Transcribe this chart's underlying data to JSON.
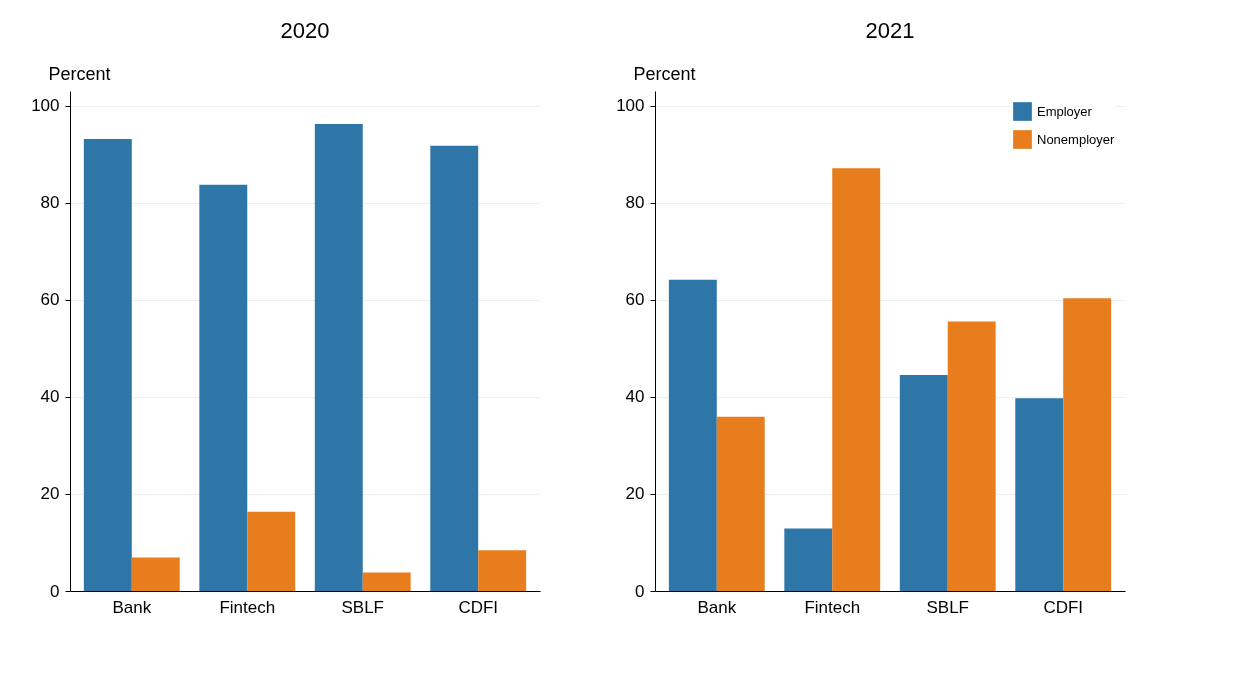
{
  "chart_data": [
    {
      "type": "bar",
      "title": "2020",
      "ylabel": "Percent",
      "categories": [
        "Bank",
        "Fintech",
        "SBLF",
        "CDFI"
      ],
      "series": [
        {
          "color": "#2e75a8",
          "values": [
            93.1,
            83.7,
            96.2,
            91.7
          ]
        },
        {
          "color": "#e87d1e",
          "values": [
            6.9,
            16.3,
            3.8,
            8.4
          ]
        }
      ],
      "ylim": [
        0,
        103
      ],
      "yticks": [
        0,
        20,
        40,
        60,
        80,
        100
      ],
      "grid": "y",
      "legend": false
    },
    {
      "type": "bar",
      "title": "2021",
      "ylabel": "Percent",
      "categories": [
        "Bank",
        "Fintech",
        "SBLF",
        "CDFI"
      ],
      "series": [
        {
          "name": "Employer",
          "color": "#2e75a8",
          "values": [
            64.1,
            12.9,
            44.5,
            39.7
          ]
        },
        {
          "name": "Nonemployer",
          "color": "#e87d1e",
          "values": [
            35.9,
            87.1,
            55.5,
            60.3
          ]
        }
      ],
      "ylim": [
        0,
        103
      ],
      "yticks": [
        0,
        20,
        40,
        60,
        80,
        100
      ],
      "grid": "y",
      "legend": "top right"
    }
  ]
}
